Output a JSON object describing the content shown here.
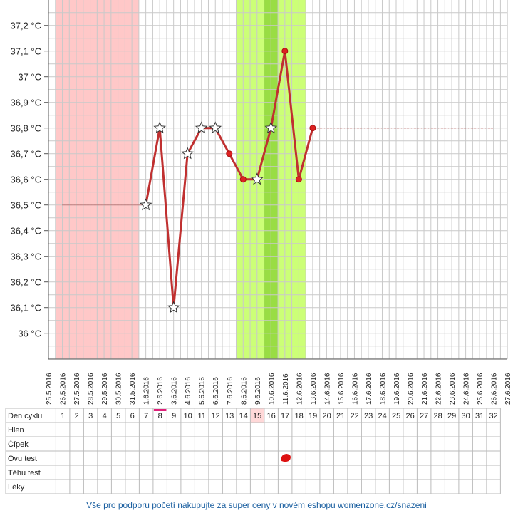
{
  "chart_data": {
    "type": "line",
    "title": "",
    "xlabel": "",
    "ylabel": "",
    "ylim": [
      35.9,
      37.25
    ],
    "grid": true,
    "y_ticks": [
      "37,2 °C",
      "37,1 °C",
      "37 °C",
      "36,9 °C",
      "36,8 °C",
      "36,7 °C",
      "36,6 °C",
      "36,5 °C",
      "36,4 °C",
      "36,3 °C",
      "36,2 °C",
      "36,1 °C",
      "36 °C"
    ],
    "x_labels": [
      "25.5.2016",
      "26.5.2016",
      "27.5.2016",
      "28.5.2016",
      "29.5.2016",
      "30.5.2016",
      "31.5.2016",
      "1.6.2016",
      "2.6.2016",
      "3.6.2016",
      "4.6.2016",
      "5.6.2016",
      "6.6.2016",
      "7.6.2016",
      "8.6.2016",
      "9.6.2016",
      "10.6.2016",
      "11.6.2016",
      "12.6.2016",
      "13.6.2016",
      "14.6.2016",
      "15.6.2016",
      "16.6.2016",
      "17.6.2016",
      "18.6.2016",
      "19.6.2016",
      "20.6.2016",
      "21.6.2016",
      "22.6.2016",
      "23.6.2016",
      "24.6.2016",
      "25.6.2016",
      "26.6.2016",
      "27.6.2016"
    ],
    "cover_lines": [
      {
        "from_day": 1,
        "to_day": 7,
        "value": 36.5
      },
      {
        "from_day": 19,
        "to_day": 32,
        "value": 36.8
      }
    ],
    "bands": [
      {
        "from_day": 0.5,
        "to_day": 6.5,
        "color": "#ffc8c8"
      },
      {
        "from_day": 13.5,
        "to_day": 18.5,
        "color": "#ccff77"
      },
      {
        "from_day": 15.5,
        "to_day": 16.5,
        "color": "#99dd44"
      }
    ],
    "series": [
      {
        "color": "#c03030",
        "points": [
          {
            "day": 7,
            "value": 36.5,
            "marker": "star"
          },
          {
            "day": 8,
            "value": 36.8,
            "marker": "star"
          },
          {
            "day": 9,
            "value": 36.1,
            "marker": "star"
          },
          {
            "day": 10,
            "value": 36.7,
            "marker": "star"
          },
          {
            "day": 11,
            "value": 36.8,
            "marker": "star"
          },
          {
            "day": 12,
            "value": 36.8,
            "marker": "star"
          },
          {
            "day": 13,
            "value": 36.7,
            "marker": "dot"
          },
          {
            "day": 14,
            "value": 36.6,
            "marker": "dot"
          },
          {
            "day": 15,
            "value": 36.6,
            "marker": "star"
          },
          {
            "day": 16,
            "value": 36.8,
            "marker": "star"
          },
          {
            "day": 17,
            "value": 37.1,
            "marker": "dot"
          },
          {
            "day": 18,
            "value": 36.6,
            "marker": "dot"
          },
          {
            "day": 19,
            "value": 36.8,
            "marker": "dot"
          }
        ]
      }
    ]
  },
  "table": {
    "day_header": "Den cyklu",
    "days": [
      "1",
      "2",
      "3",
      "4",
      "5",
      "6",
      "7",
      "8",
      "9",
      "10",
      "11",
      "12",
      "13",
      "14",
      "15",
      "16",
      "17",
      "18",
      "19",
      "20",
      "21",
      "22",
      "23",
      "24",
      "25",
      "26",
      "27",
      "28",
      "29",
      "30",
      "31",
      "32"
    ],
    "highlight_day": 15,
    "highlight_color": "#ffd8d8",
    "marked_day": 8,
    "marked_color": "#e0207a",
    "rows": [
      "Hlen",
      "Čípek",
      "Ovu test",
      "Těhu test",
      "Léky"
    ],
    "ovu_mark_day": 17,
    "ovu_mark_color": "#dd1111"
  },
  "footer": {
    "text": "Vše pro podporu početí nakupujte za super ceny v novém eshopu womenzone.cz/snazeni"
  }
}
